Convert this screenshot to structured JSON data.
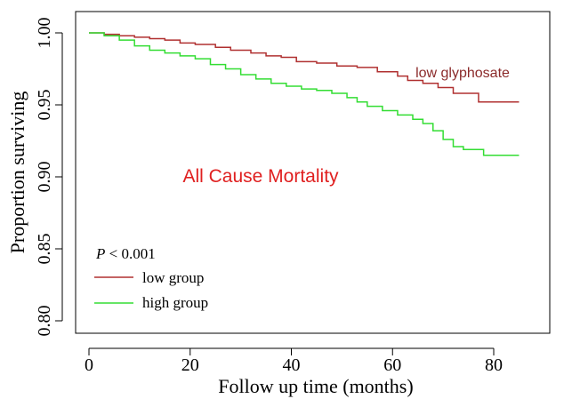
{
  "chart_data": {
    "type": "line",
    "title": "All Cause Mortality",
    "xlabel": "Follow up time (months)",
    "ylabel": "Proportion surviving",
    "xlim": [
      0,
      88
    ],
    "ylim": [
      0.8,
      1.0
    ],
    "x_ticks": [
      0,
      20,
      40,
      60,
      80
    ],
    "y_ticks": [
      0.8,
      0.85,
      0.9,
      0.95,
      1.0
    ],
    "x_tick_labels": [
      "0",
      "20",
      "40",
      "60",
      "80"
    ],
    "y_tick_labels": [
      "0.80",
      "0.85",
      "0.90",
      "0.95",
      "1.00"
    ],
    "annotation_series": "low glyphosate",
    "p_value_label": {
      "italic": "P",
      "rest": " < 0.001"
    },
    "legend": [
      "low group",
      "high group"
    ],
    "series": [
      {
        "name": "low group",
        "color": "#b03030",
        "points": [
          [
            0,
            1.0
          ],
          [
            3,
            0.999
          ],
          [
            6,
            0.998
          ],
          [
            9,
            0.997
          ],
          [
            12,
            0.996
          ],
          [
            15,
            0.995
          ],
          [
            18,
            0.993
          ],
          [
            21,
            0.992
          ],
          [
            25,
            0.99
          ],
          [
            28,
            0.988
          ],
          [
            32,
            0.986
          ],
          [
            35,
            0.984
          ],
          [
            38,
            0.983
          ],
          [
            41,
            0.98
          ],
          [
            45,
            0.979
          ],
          [
            49,
            0.977
          ],
          [
            53,
            0.976
          ],
          [
            57,
            0.973
          ],
          [
            61,
            0.97
          ],
          [
            63,
            0.967
          ],
          [
            66,
            0.965
          ],
          [
            69,
            0.962
          ],
          [
            72,
            0.958
          ],
          [
            77,
            0.952
          ],
          [
            85,
            0.952
          ]
        ]
      },
      {
        "name": "high group",
        "color": "#33dd33",
        "points": [
          [
            0,
            1.0
          ],
          [
            3,
            0.998
          ],
          [
            6,
            0.995
          ],
          [
            9,
            0.991
          ],
          [
            12,
            0.988
          ],
          [
            15,
            0.986
          ],
          [
            18,
            0.984
          ],
          [
            21,
            0.982
          ],
          [
            24,
            0.978
          ],
          [
            27,
            0.975
          ],
          [
            30,
            0.971
          ],
          [
            33,
            0.968
          ],
          [
            36,
            0.965
          ],
          [
            39,
            0.963
          ],
          [
            42,
            0.961
          ],
          [
            45,
            0.96
          ],
          [
            48,
            0.958
          ],
          [
            51,
            0.955
          ],
          [
            53,
            0.952
          ],
          [
            55,
            0.949
          ],
          [
            58,
            0.946
          ],
          [
            61,
            0.943
          ],
          [
            64,
            0.94
          ],
          [
            66,
            0.937
          ],
          [
            68,
            0.932
          ],
          [
            70,
            0.926
          ],
          [
            72,
            0.921
          ],
          [
            74,
            0.919
          ],
          [
            78,
            0.915
          ],
          [
            85,
            0.915
          ]
        ]
      }
    ]
  }
}
